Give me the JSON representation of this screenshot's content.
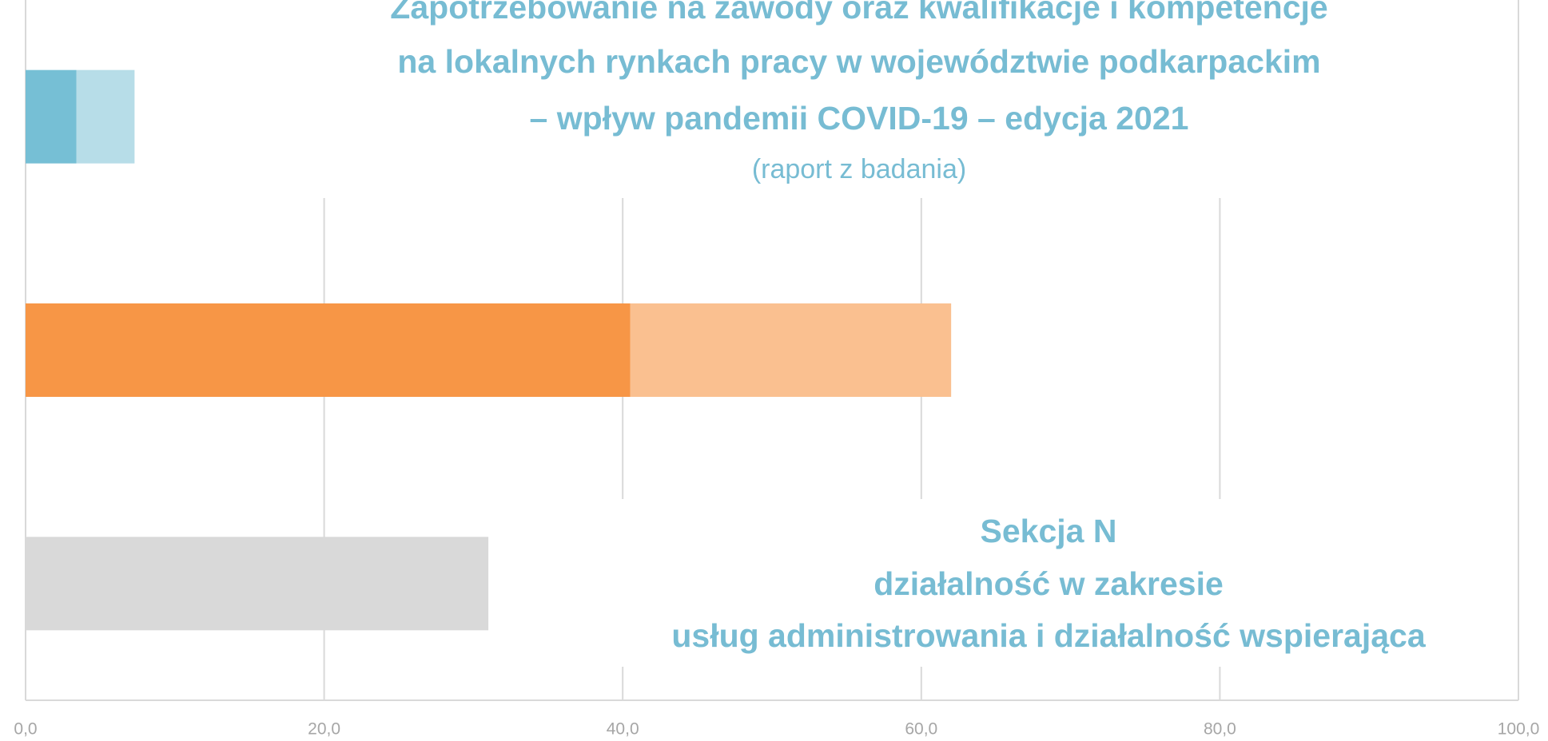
{
  "chart_data": {
    "type": "stacked_bar_horizontal",
    "title": [
      "Zapotrzebowanie na zawody oraz kwalifikacje i kompetencje",
      "na lokalnych rynkach pracy w województwie podkarpackim",
      "– wpływ pandemii COVID-19 – edycja 2021"
    ],
    "subtitle": "(raport z badania)",
    "annotation": [
      "Sekcja N",
      "działalność w zakresie",
      "usług administrowania i działalność wspierająca"
    ],
    "categories": [
      null,
      null,
      null
    ],
    "series": [
      {
        "colors": [
          "#76bfd5",
          "#f79646",
          "#d9d9d9"
        ],
        "values": [
          3.4,
          40.5,
          31.0
        ]
      },
      {
        "colors": [
          "#b7dde8",
          "#fac090",
          "#d9d9d9"
        ],
        "values": [
          3.9,
          21.5,
          null
        ]
      }
    ],
    "xlim": [
      0,
      100
    ],
    "xticks": [
      {
        "value": 0,
        "label": "0,0"
      },
      {
        "value": 20,
        "label": "20,0"
      },
      {
        "value": 40,
        "label": "40,0"
      },
      {
        "value": 60,
        "label": "60,0"
      },
      {
        "value": 80,
        "label": "80,0"
      },
      {
        "value": 100,
        "label": "100,0"
      }
    ],
    "grid": true
  }
}
